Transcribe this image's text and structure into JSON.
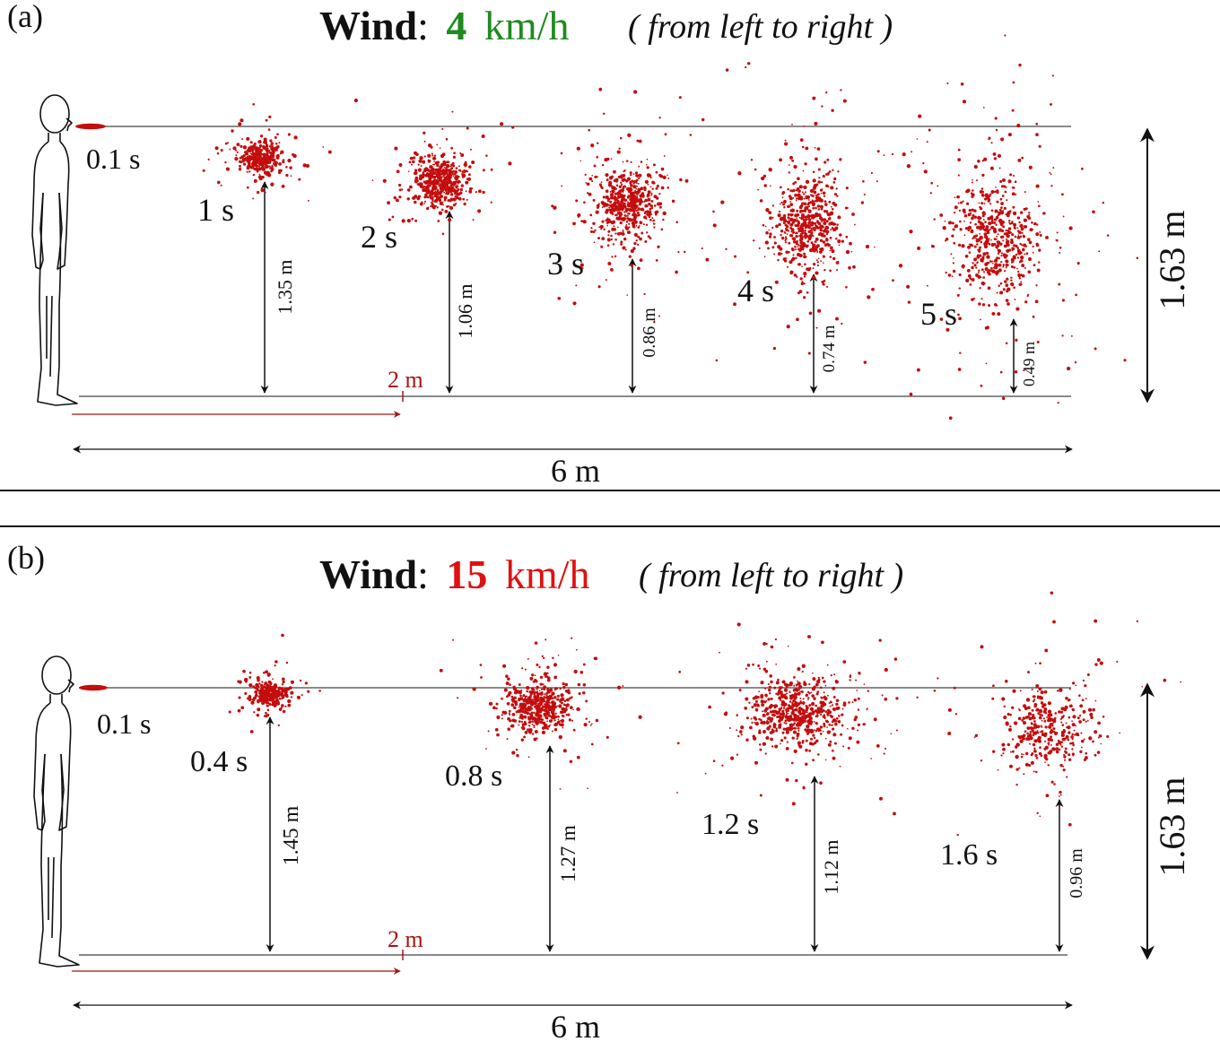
{
  "panels": [
    {
      "id": "a",
      "label": "(a)",
      "title": {
        "wind_word": "Wind",
        "colon": ":",
        "speed_value": "4",
        "speed_unit": "km/h",
        "direction_note": "( from left to right )",
        "speed_color": "#1f8a1f"
      },
      "time_labels": [
        "0.1 s",
        "1 s",
        "2 s",
        "3 s",
        "4 s",
        "5 s"
      ],
      "heights": [
        "1.35 m",
        "1.06 m",
        "0.86 m",
        "0.74 m",
        "0.49 m"
      ],
      "height_values_m": [
        1.35,
        1.06,
        0.86,
        0.74,
        0.49
      ],
      "person_height": "1.63 m",
      "distance_marker": "2 m",
      "total_distance": "6 m"
    },
    {
      "id": "b",
      "label": "(b)",
      "title": {
        "wind_word": "Wind",
        "colon": ":",
        "speed_value": "15",
        "speed_unit": "km/h",
        "direction_note": "( from left to right )",
        "speed_color": "#e01010"
      },
      "time_labels": [
        "0.1 s",
        "0.4 s",
        "0.8 s",
        "1.2 s",
        "1.6 s"
      ],
      "heights": [
        "1.45 m",
        "1.27 m",
        "1.12 m",
        "0.96 m"
      ],
      "height_values_m": [
        1.45,
        1.27,
        1.12,
        0.96
      ],
      "person_height": "1.63 m",
      "distance_marker": "2 m",
      "total_distance": "6 m"
    }
  ],
  "colors": {
    "droplet": "#c40d0d",
    "marker": "#a51515",
    "line": "#333333"
  }
}
